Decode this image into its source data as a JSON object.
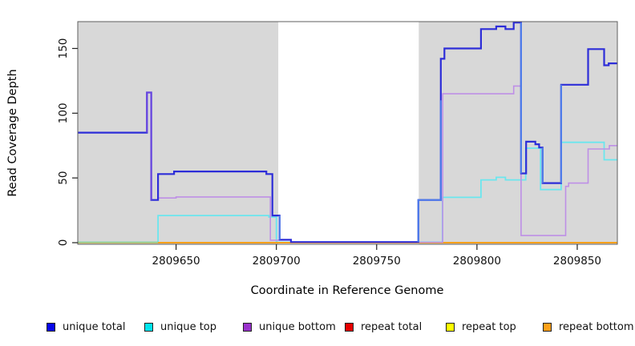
{
  "chart_data": {
    "type": "line",
    "step": "post",
    "title": "",
    "xlabel": "Coordinate in Reference Genome",
    "ylabel": "Read Coverage Depth",
    "xlim": [
      2809601,
      2809870
    ],
    "ylim": [
      0,
      172
    ],
    "grid": false,
    "legend_position": "bottom-horizontal",
    "x_ticks": {
      "values": [
        2809650,
        2809700,
        2809750,
        2809800,
        2809850
      ],
      "labels": [
        "2809650",
        "2809700",
        "2809750",
        "2809800",
        "2809850"
      ]
    },
    "y_ticks": {
      "values": [
        0,
        50,
        100,
        150
      ],
      "labels": [
        "0",
        "50",
        "100",
        "150"
      ]
    },
    "background_bands": [
      {
        "name": "gray-band-left",
        "x0": 2809601,
        "x1": 2809701,
        "color": "#d8d8d8"
      },
      {
        "name": "white-gap",
        "x0": 2809701,
        "x1": 2809771,
        "color": "#ffffff"
      },
      {
        "name": "gray-band-right",
        "x0": 2809771,
        "x1": 2809870,
        "color": "#d8d8d8"
      }
    ],
    "series": [
      {
        "name": "repeat total",
        "color": "#E60000",
        "legend_color": "#E60000",
        "width": 1.6,
        "points": [
          [
            2809601,
            0
          ],
          [
            2809870,
            0
          ]
        ]
      },
      {
        "name": "repeat top",
        "color": "#FFFF00",
        "legend_color": "#FFFF00",
        "width": 1.6,
        "points": [
          [
            2809601,
            0
          ],
          [
            2809870,
            0
          ]
        ]
      },
      {
        "name": "unique top",
        "color": "#6BE6EE",
        "legend_color": "#00E5EE",
        "width": 1.8,
        "points": [
          [
            2809601,
            0.3
          ],
          [
            2809641,
            21
          ],
          [
            2809696.3,
            19.8
          ],
          [
            2809700,
            0.4
          ],
          [
            2809771,
            0.4
          ],
          [
            2809782.8,
            35
          ],
          [
            2809802,
            48.5
          ],
          [
            2809809.6,
            50.5
          ],
          [
            2809814.2,
            48.5
          ],
          [
            2809824.3,
            73
          ],
          [
            2809831.7,
            41
          ],
          [
            2809842,
            77.5
          ],
          [
            2809863.4,
            64
          ],
          [
            2809870,
            64
          ]
        ]
      },
      {
        "name": "repeat bottom",
        "color": "#FFA019",
        "legend_color": "#FFA019",
        "width": 2.0,
        "points": [
          [
            2809601,
            0
          ],
          [
            2809870,
            0
          ]
        ]
      },
      {
        "name": "unique bottom",
        "color": "#BE8FE6",
        "legend_color": "#9932CC",
        "width": 1.6,
        "points": [
          [
            2809601,
            85
          ],
          [
            2809635.5,
            116
          ],
          [
            2809637.6,
            33
          ],
          [
            2809641,
            34.5
          ],
          [
            2809650,
            35.3
          ],
          [
            2809697,
            1.9
          ],
          [
            2809707.3,
            0.3
          ],
          [
            2809782.9,
            115
          ],
          [
            2809818.3,
            121
          ],
          [
            2809822,
            5.5
          ],
          [
            2809844.2,
            43.5
          ],
          [
            2809845.7,
            46
          ],
          [
            2809855.4,
            72.4
          ],
          [
            2809866,
            75
          ]
        ]
      },
      {
        "name": "unique total",
        "color": "#2D2DD8",
        "legend_color": "#0707E8",
        "width": 2.2,
        "points": [
          [
            2809601,
            85
          ],
          [
            2809635.5,
            116
          ],
          [
            2809637.6,
            33
          ],
          [
            2809641,
            53
          ],
          [
            2809649,
            55
          ],
          [
            2809695,
            53
          ],
          [
            2809698,
            21
          ],
          [
            2809701.6,
            2.3
          ],
          [
            2809707.3,
            0.5
          ],
          [
            2809770.8,
            33
          ],
          [
            2809782,
            142
          ],
          [
            2809783.8,
            150
          ],
          [
            2809802,
            165
          ],
          [
            2809809.6,
            167
          ],
          [
            2809814.2,
            165
          ],
          [
            2809818.3,
            170
          ],
          [
            2809822,
            53.5
          ],
          [
            2809824.5,
            78
          ],
          [
            2809829.1,
            76
          ],
          [
            2809831,
            73.5
          ],
          [
            2809832.7,
            46
          ],
          [
            2809842,
            122
          ],
          [
            2809855.4,
            149.5
          ],
          [
            2809863.4,
            137
          ],
          [
            2809865.7,
            138.5
          ]
        ]
      }
    ],
    "legend_order": [
      "unique total",
      "unique top",
      "unique bottom",
      "repeat total",
      "repeat top",
      "repeat bottom"
    ],
    "overlap_artifacts": {
      "cyan_over_orange_blend": {
        "color": "#8CD3A4",
        "width": 2.0,
        "path": [
          [
            2809601,
            0.3
          ],
          [
            2809641,
            0.3
          ]
        ]
      },
      "violet_spike": {
        "color": "#6B46E0",
        "width": 2.0,
        "path": [
          [
            2809635.5,
            85
          ],
          [
            2809635.5,
            116
          ],
          [
            2809637.6,
            116
          ],
          [
            2809637.6,
            33
          ]
        ]
      },
      "bright_blue_segments": {
        "color": "#4E7BEA",
        "width": 2.2,
        "paths": [
          [
            [
              2809701.6,
              21
            ],
            [
              2809701.6,
              2.3
            ]
          ],
          [
            [
              2809770.8,
              0.5
            ],
            [
              2809770.8,
              33
            ],
            [
              2809782,
              33
            ],
            [
              2809782,
              110
            ]
          ],
          [
            [
              2809822,
              170
            ],
            [
              2809822,
              53.5
            ]
          ],
          [
            [
              2809832.7,
              73.5
            ],
            [
              2809832.7,
              46
            ]
          ],
          [
            [
              2809842,
              46
            ],
            [
              2809842,
              122
            ]
          ]
        ]
      }
    },
    "frame_color": "#5f5f5f",
    "tick_color": "#222222"
  }
}
